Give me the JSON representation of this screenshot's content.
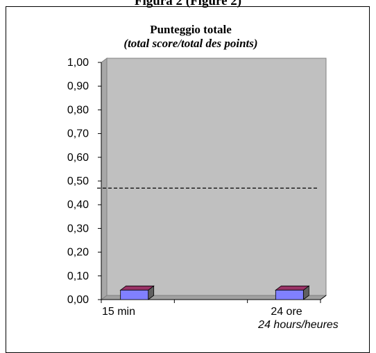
{
  "figure": {
    "header": "Figura 2 (Figure 2)"
  },
  "chart_data": {
    "type": "bar",
    "title": "Punteggio totale",
    "subtitle": "(total score/total des points)",
    "categories": [
      {
        "label": "15 min",
        "sublabel": ""
      },
      {
        "label": "24 ore",
        "sublabel": "24 hours/heures"
      }
    ],
    "values": [
      0.04,
      0.04
    ],
    "ylim": [
      0,
      1
    ],
    "yticks": [
      "0,00",
      "0,10",
      "0,20",
      "0,30",
      "0,40",
      "0,50",
      "0,60",
      "0,70",
      "0,80",
      "0,90",
      "1,00"
    ],
    "reference_line": 0.47,
    "grid": false,
    "legend": "none",
    "colors": {
      "plot_wall": "#c0c0c0",
      "bar_front": "#8080ff",
      "bar_top": "#993366",
      "bar_side": "#606060",
      "reference_line": "#000000"
    }
  }
}
